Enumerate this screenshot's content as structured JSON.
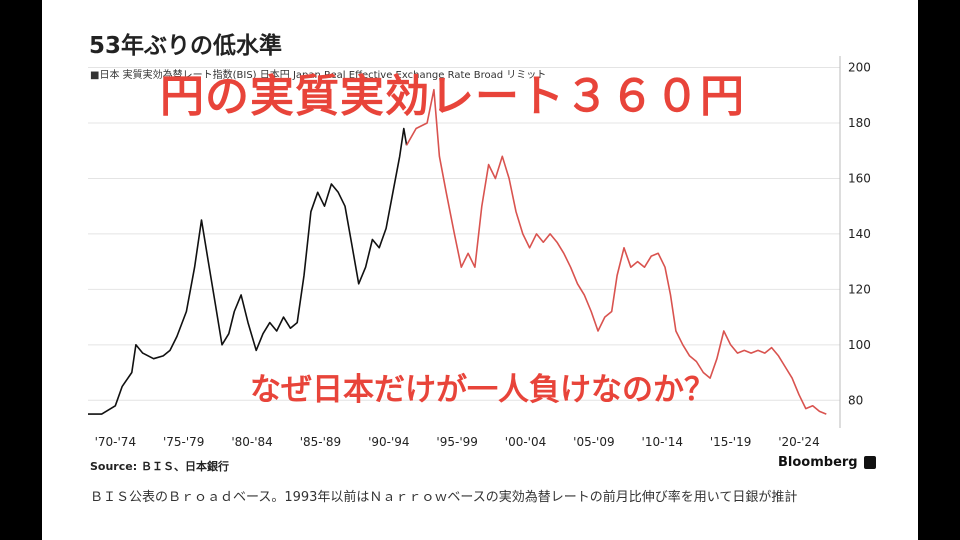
{
  "title": "53年ぶりの低水準",
  "legend": "■日本 実質実効為替レート指数(BIS) 日本円  Japan Real Effective Exchange Rate Broad リミット",
  "overlay_title": "円の実質実効レート３６０円",
  "overlay_question": "なぜ日本だけが一人負けなのか？",
  "source": "Source: ＢＩＳ、日本銀行",
  "brand": "Bloomberg",
  "caption": "ＢＩＳ公表のＢｒｏａｄベース。1993年以前はＮａｒｒｏｗベースの実効為替レートの前月比伸び率を用いて日銀が推計",
  "colors": {
    "narrow_series": "#111111",
    "broad_series": "#d9534f",
    "overlay_text": "#e8443a"
  },
  "chart_data": {
    "type": "line",
    "title": "53年ぶりの低水準",
    "ylim": [
      70,
      202
    ],
    "xlim": [
      1970,
      2025
    ],
    "y_ticks": [
      80,
      100,
      120,
      140,
      160,
      180,
      200
    ],
    "x_tick_labels": [
      "'70-'74",
      "'75-'79",
      "'80-'84",
      "'85-'89",
      "'90-'94",
      "'95-'99",
      "'00-'04",
      "'05-'09",
      "'10-'14",
      "'15-'19",
      "'20-'24"
    ],
    "x_tick_positions": [
      1972,
      1977,
      1982,
      1987,
      1992,
      1997,
      2002,
      2007,
      2012,
      2017,
      2022
    ],
    "grid": true,
    "series": [
      {
        "color": "#111111",
        "points": [
          [
            1970,
            75
          ],
          [
            1971,
            75
          ],
          [
            1972,
            78
          ],
          [
            1972.5,
            85
          ],
          [
            1973.2,
            90
          ],
          [
            1973.5,
            100
          ],
          [
            1974,
            97
          ],
          [
            1974.8,
            95
          ],
          [
            1975.5,
            96
          ],
          [
            1976,
            98
          ],
          [
            1976.5,
            103
          ],
          [
            1977.2,
            112
          ],
          [
            1977.8,
            128
          ],
          [
            1978.3,
            145
          ],
          [
            1978.8,
            130
          ],
          [
            1979.3,
            115
          ],
          [
            1979.8,
            100
          ],
          [
            1980.3,
            104
          ],
          [
            1980.7,
            112
          ],
          [
            1981.2,
            118
          ],
          [
            1981.7,
            108
          ],
          [
            1982.3,
            98
          ],
          [
            1982.8,
            104
          ],
          [
            1983.3,
            108
          ],
          [
            1983.8,
            105
          ],
          [
            1984.3,
            110
          ],
          [
            1984.8,
            106
          ],
          [
            1985.3,
            108
          ],
          [
            1985.8,
            125
          ],
          [
            1986.3,
            148
          ],
          [
            1986.8,
            155
          ],
          [
            1987.3,
            150
          ],
          [
            1987.8,
            158
          ],
          [
            1988.3,
            155
          ],
          [
            1988.8,
            150
          ],
          [
            1989.3,
            136
          ],
          [
            1989.8,
            122
          ],
          [
            1990.3,
            128
          ],
          [
            1990.8,
            138
          ],
          [
            1991.3,
            135
          ],
          [
            1991.8,
            142
          ],
          [
            1992.3,
            155
          ],
          [
            1992.8,
            168
          ],
          [
            1993.1,
            178
          ],
          [
            1993.3,
            172
          ]
        ]
      },
      {
        "color": "#d9534f",
        "points": [
          [
            1993.3,
            172
          ],
          [
            1994,
            178
          ],
          [
            1994.8,
            180
          ],
          [
            1995.3,
            192
          ],
          [
            1995.7,
            168
          ],
          [
            1996.2,
            155
          ],
          [
            1996.8,
            140
          ],
          [
            1997.3,
            128
          ],
          [
            1997.8,
            133
          ],
          [
            1998.3,
            128
          ],
          [
            1998.8,
            150
          ],
          [
            1999.3,
            165
          ],
          [
            1999.8,
            160
          ],
          [
            2000.3,
            168
          ],
          [
            2000.8,
            160
          ],
          [
            2001.3,
            148
          ],
          [
            2001.8,
            140
          ],
          [
            2002.3,
            135
          ],
          [
            2002.8,
            140
          ],
          [
            2003.3,
            137
          ],
          [
            2003.8,
            140
          ],
          [
            2004.3,
            137
          ],
          [
            2004.8,
            133
          ],
          [
            2005.3,
            128
          ],
          [
            2005.8,
            122
          ],
          [
            2006.3,
            118
          ],
          [
            2006.8,
            112
          ],
          [
            2007.3,
            105
          ],
          [
            2007.8,
            110
          ],
          [
            2008.3,
            112
          ],
          [
            2008.7,
            125
          ],
          [
            2009.2,
            135
          ],
          [
            2009.7,
            128
          ],
          [
            2010.2,
            130
          ],
          [
            2010.7,
            128
          ],
          [
            2011.2,
            132
          ],
          [
            2011.7,
            133
          ],
          [
            2012.2,
            128
          ],
          [
            2012.6,
            118
          ],
          [
            2013,
            105
          ],
          [
            2013.5,
            100
          ],
          [
            2014,
            96
          ],
          [
            2014.5,
            94
          ],
          [
            2015,
            90
          ],
          [
            2015.5,
            88
          ],
          [
            2016,
            95
          ],
          [
            2016.5,
            105
          ],
          [
            2017,
            100
          ],
          [
            2017.5,
            97
          ],
          [
            2018,
            98
          ],
          [
            2018.5,
            97
          ],
          [
            2019,
            98
          ],
          [
            2019.5,
            97
          ],
          [
            2020,
            99
          ],
          [
            2020.5,
            96
          ],
          [
            2021,
            92
          ],
          [
            2021.5,
            88
          ],
          [
            2022,
            82
          ],
          [
            2022.5,
            77
          ],
          [
            2023,
            78
          ],
          [
            2023.5,
            76
          ],
          [
            2024,
            75
          ]
        ]
      }
    ]
  }
}
